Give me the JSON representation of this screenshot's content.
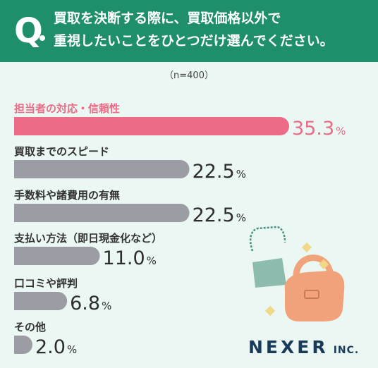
{
  "header": {
    "q_letter": "Q",
    "question_line1": "買取を決断する際に、買取価格以外で",
    "question_line2": "重視したいことをひとつだけ選んでください。"
  },
  "sample": "（n=400）",
  "colors": {
    "header_bg": "#1f8f6b",
    "highlight": "#ec6b86",
    "bar": "#9c9ca4",
    "background": "#eaf7f3"
  },
  "chart_data": {
    "type": "bar",
    "orientation": "horizontal",
    "unit": "%",
    "categories": [
      "担当者の対応・信頼性",
      "買取までのスピード",
      "手数料や諸費用の有無",
      "支払い方法（即日現金化など）",
      "口コミや評判",
      "その他"
    ],
    "values": [
      35.3,
      22.5,
      22.5,
      11.0,
      6.8,
      2.0
    ],
    "value_labels": [
      "35.3",
      "22.5",
      "22.5",
      "11.0",
      "6.8",
      "2.0"
    ],
    "highlight_index": 0,
    "xlim": [
      0,
      35.3
    ]
  },
  "logo": {
    "name": "NEXER",
    "suffix": "INC."
  }
}
